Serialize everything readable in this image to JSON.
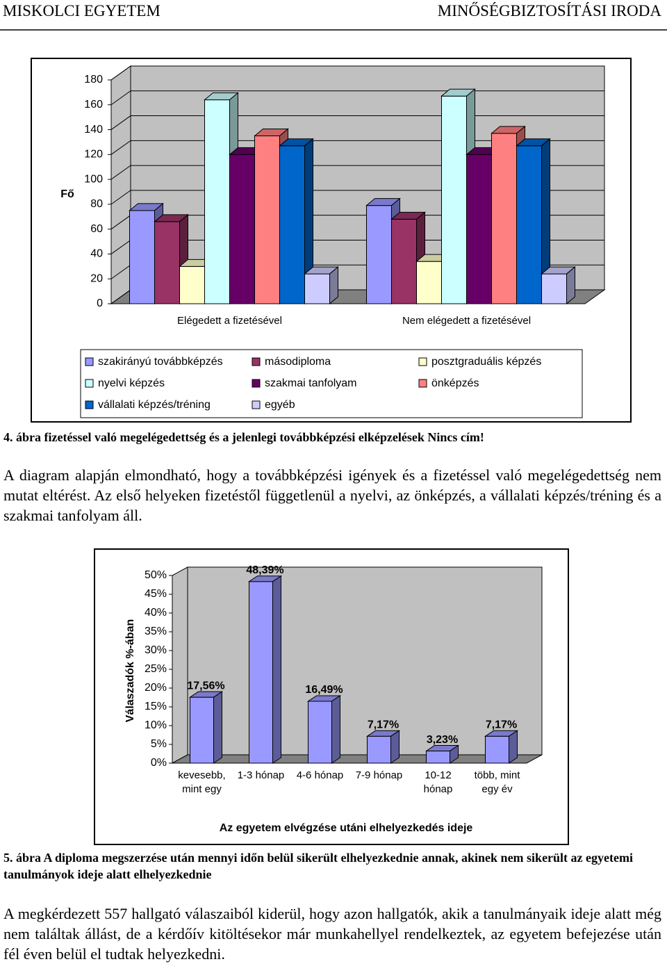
{
  "header": {
    "left": "MISKOLCI EGYETEM",
    "right": "MINŐSÉGBIZTOSÍTÁSI IRODA"
  },
  "chart_data": [
    {
      "type": "bar",
      "ylabel": "Fő",
      "categories": [
        "Elégedett a fizetésével",
        "Nem elégedett a fizetésével"
      ],
      "ylim": [
        0,
        180
      ],
      "yticks": [
        0,
        20,
        40,
        60,
        80,
        100,
        120,
        140,
        160,
        180
      ],
      "grid": true,
      "legend": "bottom",
      "series": [
        {
          "name": "szakirányú továbbképzés",
          "color": "#9999ff",
          "values": [
            75,
            79
          ]
        },
        {
          "name": "másodiploma",
          "color": "#993366",
          "values": [
            66,
            68
          ]
        },
        {
          "name": "posztgraduális képzés",
          "color": "#ffffcc",
          "values": [
            30,
            34
          ]
        },
        {
          "name": "nyelvi képzés",
          "color": "#ccffff",
          "values": [
            164,
            167
          ]
        },
        {
          "name": "szakmai tanfolyam",
          "color": "#660066",
          "values": [
            120,
            120
          ]
        },
        {
          "name": "önképzés",
          "color": "#ff8080",
          "values": [
            135,
            137
          ]
        },
        {
          "name": "vállalati képzés/tréning",
          "color": "#0066cc",
          "values": [
            127,
            127
          ]
        },
        {
          "name": "egyéb",
          "color": "#ccccff",
          "values": [
            24,
            24
          ]
        }
      ]
    },
    {
      "type": "bar",
      "ylabel": "Válaszadók %-ában",
      "xlabel": "Az egyetem elvégzése utáni elhelyezkedés ideje",
      "categories": [
        "kevesebb, mint egy",
        "1-3 hónap",
        "4-6 hónap",
        "7-9 hónap",
        "10-12 hónap",
        "több, mint egy év"
      ],
      "values": [
        17.56,
        48.39,
        16.49,
        7.17,
        3.23,
        7.17
      ],
      "value_labels": [
        "17,56%",
        "48,39%",
        "16,49%",
        "7,17%",
        "3,23%",
        "7,17%"
      ],
      "color": "#9999ff",
      "ylim": [
        0,
        50
      ],
      "grid": false,
      "yticks": [
        {
          "value": 0,
          "label": "0%"
        },
        {
          "value": 5,
          "label": "5%"
        },
        {
          "value": 10,
          "label": "10%"
        },
        {
          "value": 15,
          "label": "15%"
        },
        {
          "value": 20,
          "label": "20%"
        },
        {
          "value": 25,
          "label": "25%"
        },
        {
          "value": 30,
          "label": "30%"
        },
        {
          "value": 35,
          "label": "35%"
        },
        {
          "value": 40,
          "label": "40%"
        },
        {
          "value": 45,
          "label": "45%"
        },
        {
          "value": 50,
          "label": "50%"
        }
      ]
    }
  ],
  "captions": [
    "4. ábra fizetéssel való megelégedettség és a jelenlegi továbbképzési elképzelések Nincs cím!",
    "5. ábra A diploma megszerzése után mennyi időn belül sikerült elhelyezkednie annak, akinek nem sikerült az egyetemi tanulmányok ideje alatt elhelyezkednie"
  ],
  "paragraphs": [
    "A diagram alapján elmondható, hogy a továbbképzési igények és a fizetéssel való megelégedettség nem mutat eltérést. Az első helyeken fizetéstől függetlenül a nyelvi, az önképzés, a vállalati képzés/tréning és a szakmai tanfolyam áll.",
    "A megkérdezett 557 hallgató válaszaiból kiderül, hogy azon hallgatók, akik a tanulmányaik ideje alatt még nem találtak állást, de a kérdőív kitöltésekor már munkahellyel rendelkeztek, az egyetem befejezése után fél éven belül el tudtak helyezkedni."
  ]
}
